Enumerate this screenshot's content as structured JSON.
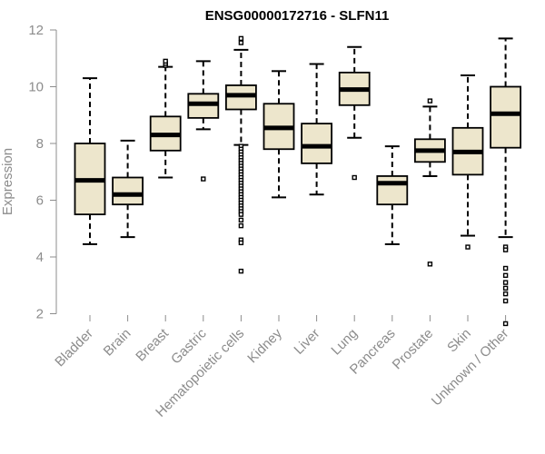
{
  "chart_data": {
    "type": "boxplot",
    "title": "ENSG00000172716 - SLFN11",
    "xlabel": "",
    "ylabel": "Expression",
    "ylim": [
      1.5,
      12.2
    ],
    "yticks": [
      2,
      4,
      6,
      8,
      10,
      12
    ],
    "grid": false,
    "colors": {
      "box_fill": "#ede6cc",
      "stroke": "#000000",
      "text": "#8c8c8c",
      "axis": "#8c8c8c"
    },
    "categories": [
      "Bladder",
      "Brain",
      "Breast",
      "Gastric",
      "Hematopoietic cells",
      "Kidney",
      "Liver",
      "Lung",
      "Pancreas",
      "Prostate",
      "Skin",
      "Unknown / Other"
    ],
    "boxes": [
      {
        "name": "Bladder",
        "whisker_low": 4.45,
        "q1": 5.5,
        "median": 6.7,
        "q3": 8.0,
        "whisker_high": 10.3,
        "outliers": []
      },
      {
        "name": "Brain",
        "whisker_low": 4.7,
        "q1": 5.85,
        "median": 6.2,
        "q3": 6.8,
        "whisker_high": 8.1,
        "outliers": []
      },
      {
        "name": "Breast",
        "whisker_low": 6.8,
        "q1": 7.75,
        "median": 8.3,
        "q3": 8.95,
        "whisker_high": 10.7,
        "outliers": [
          10.75,
          10.82,
          10.9
        ]
      },
      {
        "name": "Gastric",
        "whisker_low": 8.5,
        "q1": 8.9,
        "median": 9.4,
        "q3": 9.75,
        "whisker_high": 10.9,
        "outliers": [
          6.75
        ]
      },
      {
        "name": "Hematopoietic cells",
        "whisker_low": 7.95,
        "q1": 9.2,
        "median": 9.7,
        "q3": 10.05,
        "whisker_high": 11.3,
        "outliers": [
          11.55,
          11.7,
          7.9,
          7.8,
          7.7,
          7.6,
          7.5,
          7.4,
          7.3,
          7.2,
          7.1,
          7.0,
          6.9,
          6.8,
          6.7,
          6.6,
          6.5,
          6.4,
          6.3,
          6.2,
          6.1,
          6.0,
          5.9,
          5.8,
          5.7,
          5.6,
          5.5,
          5.3,
          5.1,
          4.6,
          4.5,
          3.5
        ]
      },
      {
        "name": "Kidney",
        "whisker_low": 6.1,
        "q1": 7.8,
        "median": 8.55,
        "q3": 9.4,
        "whisker_high": 10.55,
        "outliers": []
      },
      {
        "name": "Liver",
        "whisker_low": 6.2,
        "q1": 7.3,
        "median": 7.9,
        "q3": 8.7,
        "whisker_high": 10.8,
        "outliers": []
      },
      {
        "name": "Lung",
        "whisker_low": 8.2,
        "q1": 9.35,
        "median": 9.9,
        "q3": 10.5,
        "whisker_high": 11.4,
        "outliers": [
          6.8
        ]
      },
      {
        "name": "Pancreas",
        "whisker_low": 4.45,
        "q1": 5.85,
        "median": 6.6,
        "q3": 6.85,
        "whisker_high": 7.9,
        "outliers": []
      },
      {
        "name": "Prostate",
        "whisker_low": 6.85,
        "q1": 7.35,
        "median": 7.75,
        "q3": 8.15,
        "whisker_high": 9.3,
        "outliers": [
          9.5,
          3.75
        ]
      },
      {
        "name": "Skin",
        "whisker_low": 4.75,
        "q1": 6.9,
        "median": 7.7,
        "q3": 8.55,
        "whisker_high": 10.4,
        "outliers": [
          4.35
        ]
      },
      {
        "name": "Unknown / Other",
        "whisker_low": 4.7,
        "q1": 7.85,
        "median": 9.05,
        "q3": 10.0,
        "whisker_high": 11.7,
        "outliers": [
          4.35,
          4.25,
          3.6,
          3.35,
          3.1,
          2.9,
          2.7,
          2.45,
          1.65
        ]
      }
    ]
  }
}
